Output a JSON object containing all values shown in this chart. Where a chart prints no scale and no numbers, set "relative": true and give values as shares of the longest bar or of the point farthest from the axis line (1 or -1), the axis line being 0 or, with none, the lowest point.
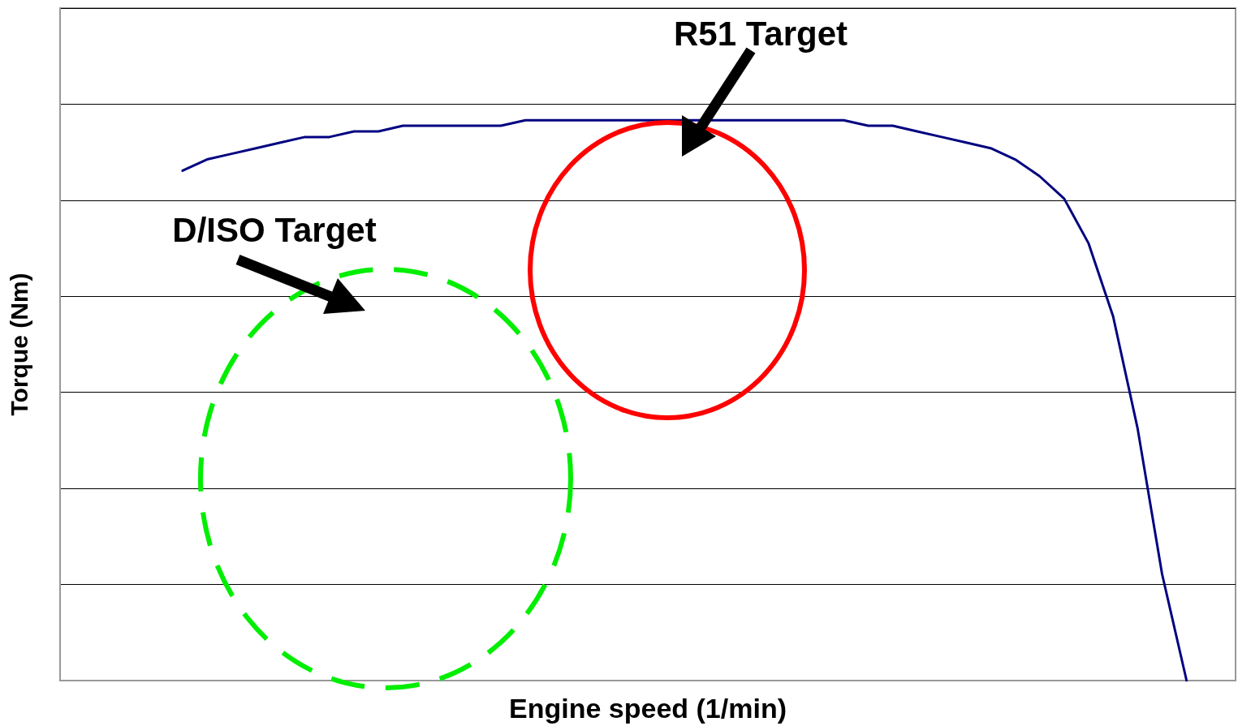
{
  "chart_data": {
    "type": "line",
    "relative": true,
    "xlabel": "Engine speed (1/min)",
    "ylabel": "Torque (Nm)",
    "categories": [
      null,
      null,
      null,
      null,
      null,
      null,
      null,
      null,
      null,
      null,
      null,
      null,
      null,
      null,
      null,
      null,
      null,
      null,
      null,
      null,
      null,
      null,
      null,
      null,
      null,
      null,
      null,
      null,
      null,
      null,
      null,
      null,
      null,
      null,
      null,
      null,
      null,
      null,
      null,
      null,
      null,
      null,
      null,
      null,
      null,
      null,
      null,
      null,
      null
    ],
    "series": [
      {
        "color": "#000080",
        "values": [
          null,
          null,
          null,
          null,
          null,
          0.91,
          0.93,
          0.94,
          0.95,
          0.96,
          0.97,
          0.97,
          0.98,
          0.98,
          0.99,
          0.99,
          0.99,
          0.99,
          0.99,
          1.0,
          1.0,
          1.0,
          1.0,
          1.0,
          1.0,
          1.0,
          1.0,
          1.0,
          1.0,
          1.0,
          1.0,
          1.0,
          1.0,
          0.99,
          0.99,
          0.98,
          0.97,
          0.96,
          0.95,
          0.93,
          0.9,
          0.86,
          0.78,
          0.65,
          0.45,
          0.19,
          0,
          null,
          null
        ]
      }
    ],
    "annotations": [
      "R51 Target",
      "D/ISO Target"
    ],
    "grid": "y",
    "marker": "none",
    "line_style": "solid"
  }
}
